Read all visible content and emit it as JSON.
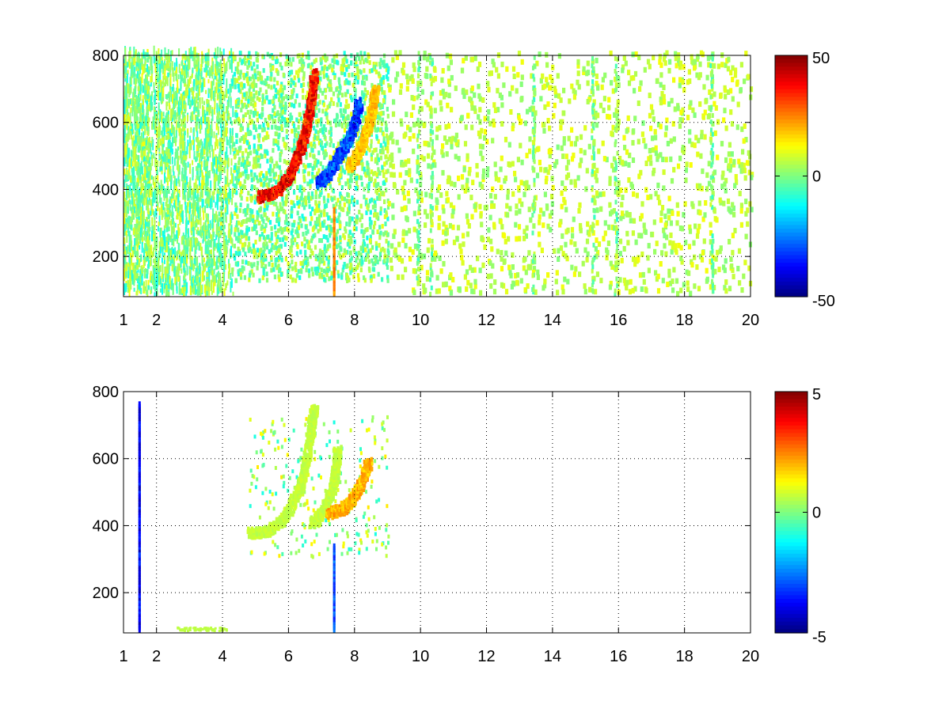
{
  "chart_data": [
    {
      "type": "heatmap",
      "title": "",
      "xlabel": "",
      "ylabel": "",
      "grid": true,
      "colormap": "jet",
      "xlim": [
        1,
        20
      ],
      "ylim": [
        80,
        800
      ],
      "xticks": [
        1,
        2,
        4,
        6,
        8,
        10,
        12,
        14,
        16,
        18,
        20
      ],
      "yticks": [
        200,
        400,
        600,
        800
      ],
      "clim": [
        -50,
        50
      ],
      "colorbar_ticks": [
        50,
        0,
        -50
      ],
      "features": [
        {
          "kind": "ridge",
          "value": 45,
          "points": [
            [
              5.1,
              370
            ],
            [
              5.6,
              385
            ],
            [
              6.0,
              430
            ],
            [
              6.3,
              500
            ],
            [
              6.5,
              570
            ],
            [
              6.65,
              650
            ],
            [
              6.75,
              740
            ]
          ]
        },
        {
          "kind": "ridge",
          "value": -38,
          "points": [
            [
              6.9,
              410
            ],
            [
              7.2,
              440
            ],
            [
              7.5,
              490
            ],
            [
              7.8,
              540
            ],
            [
              8.0,
              600
            ],
            [
              8.1,
              650
            ]
          ]
        },
        {
          "kind": "ridge",
          "value": 22,
          "points": [
            [
              7.8,
              460
            ],
            [
              8.1,
              500
            ],
            [
              8.3,
              560
            ],
            [
              8.5,
              620
            ],
            [
              8.6,
              690
            ]
          ]
        },
        {
          "kind": "line",
          "value": 28,
          "x": 7.35,
          "y": [
            80,
            330
          ]
        }
      ]
    },
    {
      "type": "heatmap",
      "title": "",
      "xlabel": "",
      "ylabel": "",
      "grid": true,
      "colormap": "jet",
      "xlim": [
        1,
        20
      ],
      "ylim": [
        80,
        800
      ],
      "xticks": [
        1,
        2,
        4,
        6,
        8,
        10,
        12,
        14,
        16,
        18,
        20
      ],
      "yticks": [
        200,
        400,
        600,
        800
      ],
      "clim": [
        -5,
        5
      ],
      "colorbar_ticks": [
        5,
        0,
        -5
      ],
      "features": [
        {
          "kind": "ridge",
          "value": 0.8,
          "points": [
            [
              4.8,
              370
            ],
            [
              5.4,
              375
            ],
            [
              5.9,
              420
            ],
            [
              6.3,
              500
            ],
            [
              6.5,
              580
            ],
            [
              6.65,
              680
            ],
            [
              6.75,
              740
            ]
          ]
        },
        {
          "kind": "ridge",
          "value": 0.8,
          "points": [
            [
              6.7,
              400
            ],
            [
              7.0,
              430
            ],
            [
              7.3,
              500
            ],
            [
              7.4,
              560
            ],
            [
              7.45,
              620
            ]
          ]
        },
        {
          "kind": "ridge",
          "value": 2.4,
          "points": [
            [
              7.2,
              430
            ],
            [
              7.6,
              440
            ],
            [
              7.9,
              470
            ],
            [
              8.2,
              520
            ],
            [
              8.4,
              580
            ]
          ]
        },
        {
          "kind": "line",
          "value": -3.5,
          "x": 7.35,
          "y": [
            80,
            330
          ]
        },
        {
          "kind": "line",
          "value": -4.5,
          "x": 1.45,
          "y": [
            80,
            760
          ]
        }
      ]
    }
  ]
}
